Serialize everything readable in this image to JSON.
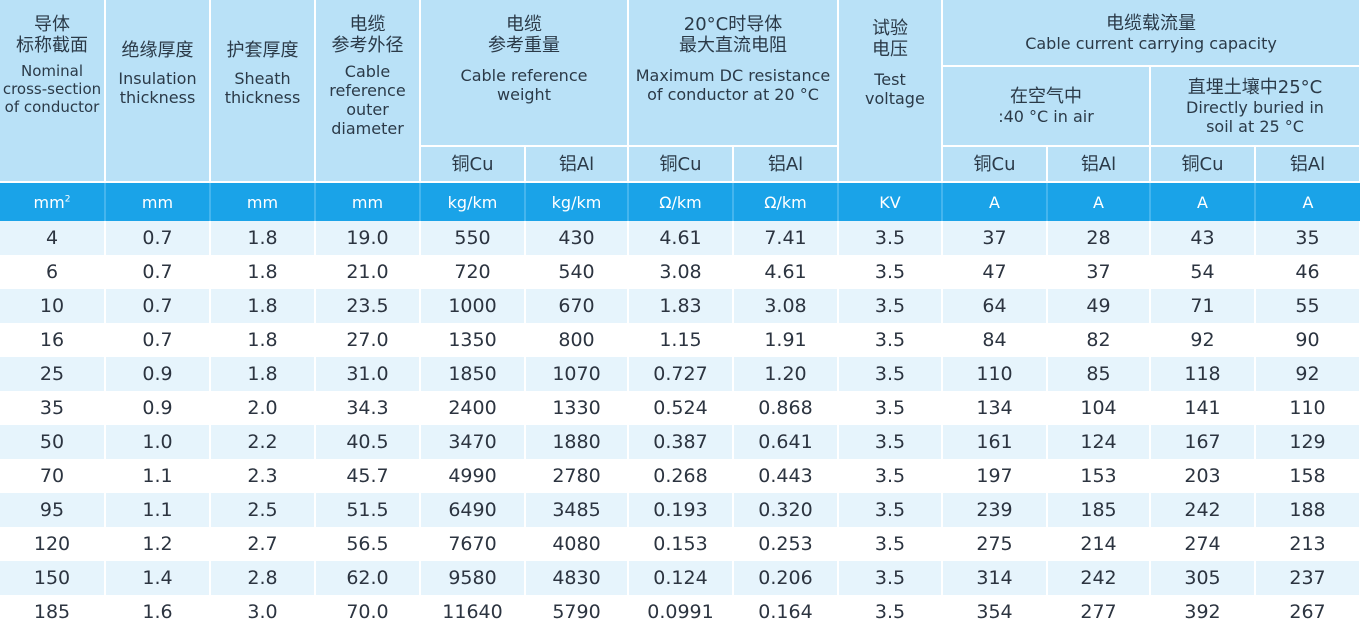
{
  "headers": {
    "conductor": {
      "zh": "导体\n标称截面",
      "en": "Nominal cross-section of conductor"
    },
    "insulation": {
      "zh": "绝缘厚度",
      "en": "Insulation thickness"
    },
    "sheath": {
      "zh": "护套厚度",
      "en": "Sheath thickness"
    },
    "outer_diameter": {
      "zh": "电缆\n参考外径",
      "en": "Cable reference outer diameter"
    },
    "weight": {
      "zh": "电缆\n参考重量",
      "en": "Cable reference weight"
    },
    "dc_resistance": {
      "zh": "20°C时导体\n最大直流电阻",
      "en": "Maximum DC resistance of conductor at 20 °C"
    },
    "test_voltage": {
      "zh": "试验\n电压",
      "en": "Test voltage"
    },
    "capacity": {
      "zh": "电缆载流量",
      "en": "Cable current carrying capacity"
    },
    "in_air": {
      "zh": "在空气中",
      "en": ":40 °C in air"
    },
    "in_soil": {
      "zh": "直埋土壤中25°C",
      "en": "Directly buried in soil at 25 °C"
    },
    "cu": "铜Cu",
    "al": "铝Al"
  },
  "units": [
    "mm",
    "mm",
    "mm",
    "mm",
    "kg/km",
    "kg/km",
    "Ω/km",
    "Ω/km",
    "KV",
    "A",
    "A",
    "A",
    "A"
  ],
  "unit_first_sup": "2",
  "rows": [
    [
      "4",
      "0.7",
      "1.8",
      "19.0",
      "550",
      "430",
      "4.61",
      "7.41",
      "3.5",
      "37",
      "28",
      "43",
      "35"
    ],
    [
      "6",
      "0.7",
      "1.8",
      "21.0",
      "720",
      "540",
      "3.08",
      "4.61",
      "3.5",
      "47",
      "37",
      "54",
      "46"
    ],
    [
      "10",
      "0.7",
      "1.8",
      "23.5",
      "1000",
      "670",
      "1.83",
      "3.08",
      "3.5",
      "64",
      "49",
      "71",
      "55"
    ],
    [
      "16",
      "0.7",
      "1.8",
      "27.0",
      "1350",
      "800",
      "1.15",
      "1.91",
      "3.5",
      "84",
      "82",
      "92",
      "90"
    ],
    [
      "25",
      "0.9",
      "1.8",
      "31.0",
      "1850",
      "1070",
      "0.727",
      "1.20",
      "3.5",
      "110",
      "85",
      "118",
      "92"
    ],
    [
      "35",
      "0.9",
      "2.0",
      "34.3",
      "2400",
      "1330",
      "0.524",
      "0.868",
      "3.5",
      "134",
      "104",
      "141",
      "110"
    ],
    [
      "50",
      "1.0",
      "2.2",
      "40.5",
      "3470",
      "1880",
      "0.387",
      "0.641",
      "3.5",
      "161",
      "124",
      "167",
      "129"
    ],
    [
      "70",
      "1.1",
      "2.3",
      "45.7",
      "4990",
      "2780",
      "0.268",
      "0.443",
      "3.5",
      "197",
      "153",
      "203",
      "158"
    ],
    [
      "95",
      "1.1",
      "2.5",
      "51.5",
      "6490",
      "3485",
      "0.193",
      "0.320",
      "3.5",
      "239",
      "185",
      "242",
      "188"
    ],
    [
      "120",
      "1.2",
      "2.7",
      "56.5",
      "7670",
      "4080",
      "0.153",
      "0.253",
      "3.5",
      "275",
      "214",
      "274",
      "213"
    ],
    [
      "150",
      "1.4",
      "2.8",
      "62.0",
      "9580",
      "4830",
      "0.124",
      "0.206",
      "3.5",
      "314",
      "242",
      "305",
      "237"
    ],
    [
      "185",
      "1.6",
      "3.0",
      "70.0",
      "11640",
      "5790",
      "0.0991",
      "0.164",
      "3.5",
      "354",
      "277",
      "392",
      "267"
    ]
  ]
}
